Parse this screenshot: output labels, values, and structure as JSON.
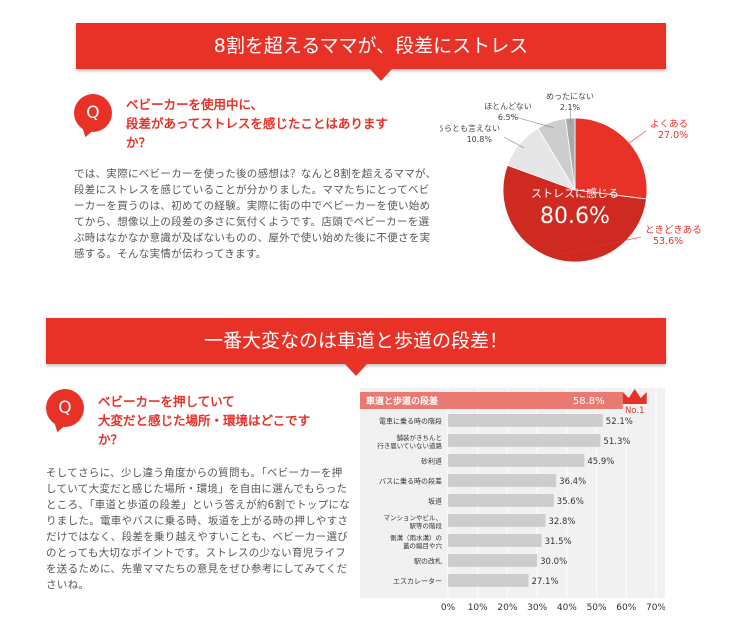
{
  "section1": {
    "banner": "8割を超えるママが、段差にストレス",
    "q_icon": "Q",
    "question_lines": [
      "ベビーカーを使用中に、",
      "段差があってストレスを感じたことはあります",
      "か？"
    ],
    "body_lines": [
      "では、実際にベビーカーを使った後の感想は？なんと8割を超えるママが、",
      "段差にストレスを感じていることが分かりました。ママたちにとってベビ",
      "ーカーを買うのは、初めての経験。実際に街の中でベビーカーを使い始め",
      "てから、想像以上の段差の多さに気付くようです。店頭でベビーカーを選",
      "ぶ時はなかなか意識が及ばないものの、屋外で使い始めた後に不便さを実",
      "感する。そんな実情が伝わってきます。"
    ]
  },
  "section2": {
    "banner": "一番大変なのは車道と歩道の段差！",
    "q_icon": "Q",
    "question_lines": [
      "ベビーカーを押していて",
      "大変だと感じた場所・環境はどこです",
      "か？"
    ],
    "body_lines": [
      "そしてさらに、少し違う角度からの質問も。「ベビーカーを押",
      "していて大変だと感じた場所・環境」を自由に選んでもらった",
      "ところ、「車道と歩道の段差」という答えが約6割でトップにな",
      "りました。電車やバスに乗る時、坂道を上がる時の押しやすさ",
      "だけではなく、段差を乗り越えやすいことも、ベビーカー選び",
      "のとっても大切なポイントです。ストレスの少ない育児ライフ",
      "を送るために、先輩ママたちの意見をぜひ参考にしてみてくだ",
      "さいね。"
    ]
  },
  "colors": {
    "red": "#e83228",
    "dark_red": "#cf2a22",
    "gray_bar": "#cccccc",
    "light_gray": "#dedede",
    "mid_gray": "#bdbdbd"
  },
  "chart_data": [
    {
      "type": "pie",
      "slices": [
        {
          "label": "よくある",
          "value": 27.0,
          "value_label": "27.0%",
          "color": "#e83228"
        },
        {
          "label": "ときどきある",
          "value": 53.6,
          "value_label": "53.6%",
          "color": "#cf2a22"
        },
        {
          "label": "どちらとも言えない",
          "value": 10.8,
          "value_label": "10.8%",
          "color": "#e6e6e6"
        },
        {
          "label": "ほとんどない",
          "value": 6.5,
          "value_label": "6.5%",
          "color": "#cdcdcd"
        },
        {
          "label": "めったにない",
          "value": 2.1,
          "value_label": "2.1%",
          "color": "#a9a9a9"
        }
      ],
      "center_label": "ストレスに感じる",
      "center_value": "80.6%"
    },
    {
      "type": "bar",
      "orientation": "horizontal",
      "categories": [
        [
          "車道と歩道の段差"
        ],
        [
          "電車に乗る時の階段"
        ],
        [
          "舗装がきちんと",
          "行き届いていない道路"
        ],
        [
          "砂利道"
        ],
        [
          "バスに乗る時の段差"
        ],
        [
          "坂道"
        ],
        [
          "マンションやビル、",
          "駅等の階段"
        ],
        [
          "側溝（雨水溝）の",
          "蓋の編目や穴"
        ],
        [
          "駅の改札"
        ],
        [
          "エスカレーター"
        ]
      ],
      "values": [
        58.8,
        52.1,
        51.3,
        45.9,
        36.4,
        35.6,
        32.8,
        31.5,
        30.0,
        27.1
      ],
      "value_labels": [
        "58.8%",
        "52.1%",
        "51.3%",
        "45.9%",
        "36.4%",
        "35.6%",
        "32.8%",
        "31.5%",
        "30.0%",
        "27.1%"
      ],
      "xlim": [
        0,
        70
      ],
      "x_ticks": [
        "0%",
        "10%",
        "20%",
        "30%",
        "40%",
        "50%",
        "60%",
        "70%"
      ],
      "grid": true,
      "top_badge": "No.1",
      "highlight_index": 0
    }
  ]
}
